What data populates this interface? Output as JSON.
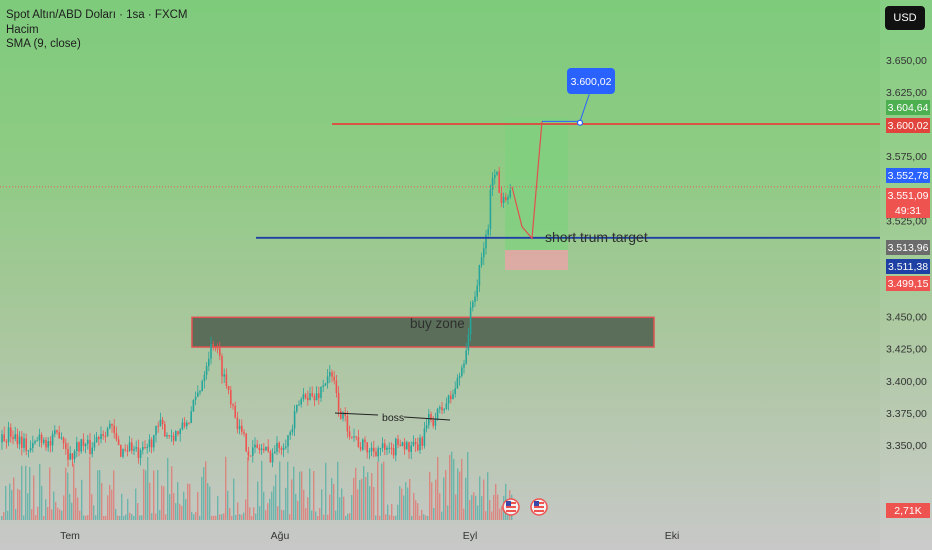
{
  "header": {
    "symbol": "Spot Altın/ABD Doları · 1sa · FXCM",
    "volume_label": "Hacim",
    "sma_label": "SMA (9, close)",
    "currency_button": "USD"
  },
  "colors": {
    "up": "#26a69a",
    "down": "#ef5350",
    "resistance": "#e0443c",
    "support": "#1e3fa3",
    "zone_fill": "#5a6e5a",
    "zone_border": "#e05050",
    "target_box": "#7fd07f",
    "stop_box": "#e6a6a6"
  },
  "price_axis": {
    "ticks": [
      "3.650,00",
      "3.625,00",
      "3.575,00",
      "3.525,00",
      "3.475,00",
      "3.450,00",
      "3.425,00",
      "3.400,00",
      "3.375,00",
      "3.350,00"
    ]
  },
  "time_axis": {
    "ticks": [
      "Tem",
      "Ağu",
      "Eyl",
      "Eki"
    ]
  },
  "price_tags": {
    "high": "3.604,64",
    "resistance": "3.600,02",
    "sma": "3.552,78",
    "last": "3.551,09",
    "countdown": "49:31",
    "level_gray": "3.513,96",
    "support": "3.511,38",
    "level_red": "3.499,15",
    "volume": "2,71K"
  },
  "annotations": {
    "callout": "3.600,02",
    "target_text": "short trum target",
    "buy_zone": "buy zone",
    "boss": "boss"
  },
  "chart_data": {
    "type": "candlestick",
    "title": "Spot Altın/ABD Doları · 1sa · FXCM",
    "ylim": [
      3330,
      3665
    ],
    "x_ticks": [
      "Tem",
      "Ağu",
      "Eyl",
      "Eki"
    ],
    "horizontal_lines": [
      {
        "label": "3.600,02",
        "value": 3600.02
      },
      {
        "label": "3.511,38",
        "value": 3511.38
      }
    ],
    "zones": [
      {
        "label": "buy zone",
        "from": 3431,
        "to": 3451
      }
    ],
    "close_path": [
      [
        0,
        3352
      ],
      [
        10,
        3360
      ],
      [
        20,
        3355
      ],
      [
        30,
        3345
      ],
      [
        40,
        3358
      ],
      [
        50,
        3350
      ],
      [
        60,
        3362
      ],
      [
        70,
        3340
      ],
      [
        80,
        3352
      ],
      [
        90,
        3347
      ],
      [
        100,
        3360
      ],
      [
        110,
        3365
      ],
      [
        120,
        3345
      ],
      [
        130,
        3350
      ],
      [
        140,
        3340
      ],
      [
        150,
        3352
      ],
      [
        160,
        3365
      ],
      [
        170,
        3358
      ],
      [
        180,
        3360
      ],
      [
        190,
        3372
      ],
      [
        200,
        3395
      ],
      [
        208,
        3420
      ],
      [
        214,
        3432
      ],
      [
        220,
        3415
      ],
      [
        226,
        3398
      ],
      [
        232,
        3385
      ],
      [
        240,
        3360
      ],
      [
        250,
        3345
      ],
      [
        260,
        3348
      ],
      [
        270,
        3342
      ],
      [
        280,
        3350
      ],
      [
        290,
        3358
      ],
      [
        298,
        3380
      ],
      [
        306,
        3392
      ],
      [
        314,
        3385
      ],
      [
        322,
        3395
      ],
      [
        328,
        3405
      ],
      [
        334,
        3398
      ],
      [
        340,
        3375
      ],
      [
        350,
        3362
      ],
      [
        360,
        3350
      ],
      [
        370,
        3346
      ],
      [
        380,
        3348
      ],
      [
        390,
        3342
      ],
      [
        400,
        3355
      ],
      [
        410,
        3345
      ],
      [
        420,
        3350
      ],
      [
        428,
        3368
      ],
      [
        436,
        3372
      ],
      [
        444,
        3380
      ],
      [
        452,
        3388
      ],
      [
        460,
        3405
      ],
      [
        466,
        3425
      ],
      [
        472,
        3460
      ],
      [
        478,
        3478
      ],
      [
        484,
        3505
      ],
      [
        488,
        3520
      ],
      [
        492,
        3560
      ],
      [
        496,
        3568
      ],
      [
        500,
        3540
      ],
      [
        504,
        3548
      ],
      [
        508,
        3545
      ],
      [
        512,
        3551
      ]
    ],
    "projection": [
      [
        512,
        3551
      ],
      [
        522,
        3520
      ],
      [
        532,
        3511
      ],
      [
        542,
        3602
      ]
    ]
  }
}
